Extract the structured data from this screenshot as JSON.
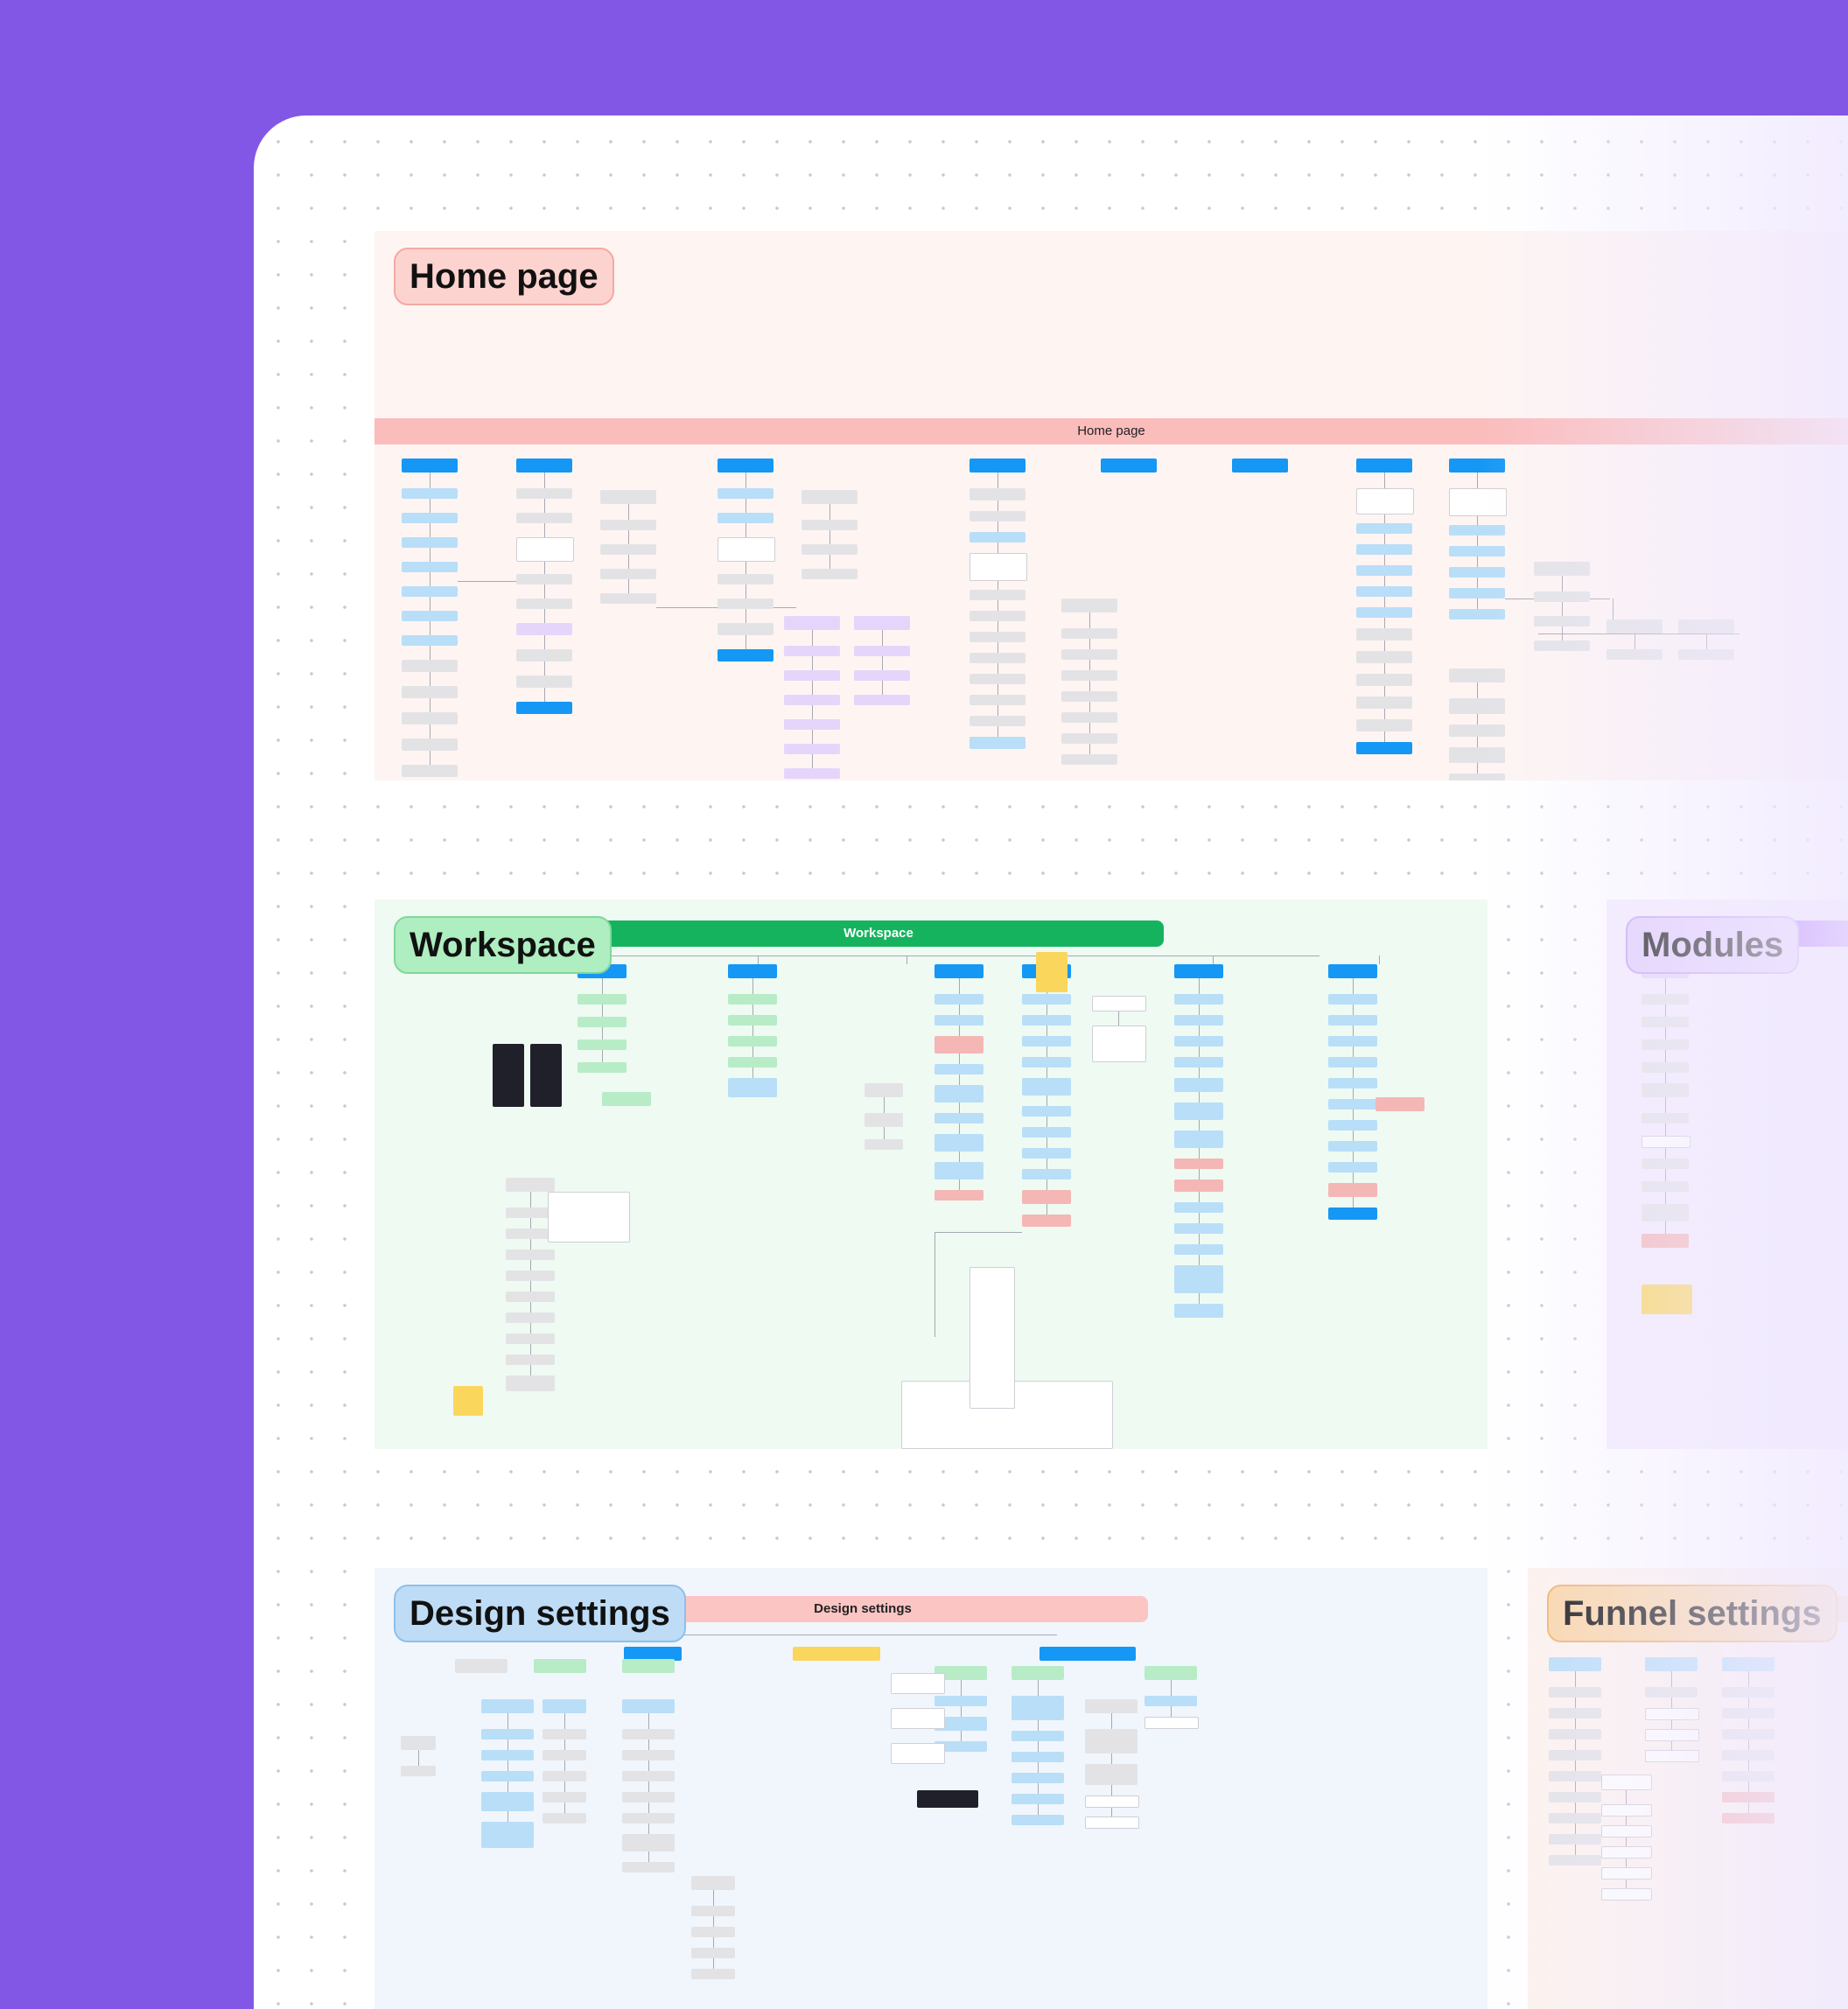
{
  "canvas": {
    "page_background": "#8257e5",
    "board_background": "#ffffff",
    "dot_color": "#c9c9d4"
  },
  "sections": {
    "home": {
      "label": "Home page",
      "band": "Home page",
      "label_color": "#fdd3cf",
      "band_color": "#fbbcbc",
      "area_color": "#fef5f3"
    },
    "workspace": {
      "label": "Workspace",
      "band": "Workspace",
      "label_color": "#aeeec0",
      "band_color": "#16b35e",
      "area_color": "#eefaf2"
    },
    "modules": {
      "label": "Modules",
      "label_color": "#e2cffc",
      "band_color": "#a463f8",
      "area_color": "#f4eefe"
    },
    "design": {
      "label": "Design  settings",
      "band": "Design settings",
      "label_color": "#bedcf6",
      "band_color": "#fbc5c4",
      "area_color": "#f1f6fc"
    },
    "funnel": {
      "label": "Funnel settings",
      "label_color": "#fbd7a8",
      "band_color": "#fbd7a8",
      "area_color": "#fdf4ee"
    }
  },
  "node_colors": {
    "blue": "#1597f5",
    "light_blue": "#b9def8",
    "gray": "#e3e3e6",
    "pink": "#f4b7b5",
    "light_green": "#b7ecc6",
    "purple": "#e5d5fb",
    "sticky_note": "#fbd65c"
  }
}
